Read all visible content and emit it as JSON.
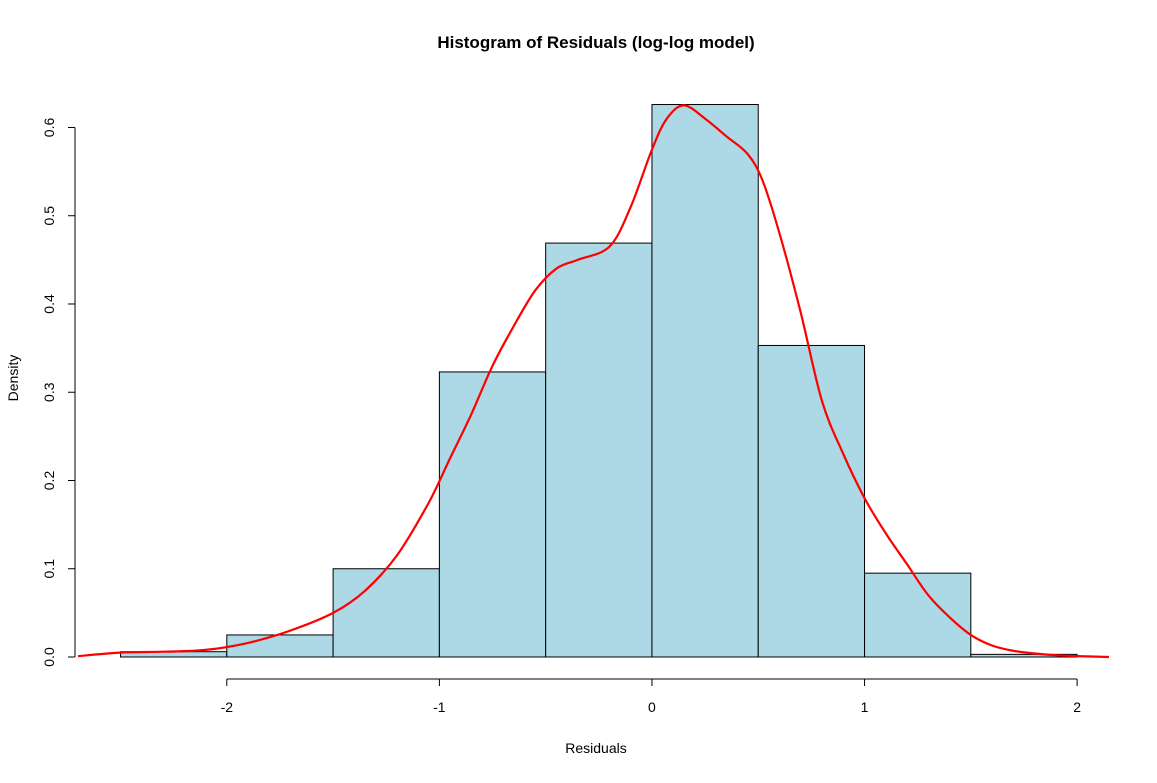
{
  "chart_data": {
    "type": "bar",
    "title": "Histogram of Residuals (log-log model)",
    "xlabel": "Residuals",
    "ylabel": "Density",
    "xlim": [
      -2.7,
      2.15
    ],
    "ylim": [
      0,
      0.63
    ],
    "x_ticks": [
      -2,
      -1,
      0,
      1,
      2
    ],
    "x_tick_labels": [
      "-2",
      "-1",
      "0",
      "1",
      "2"
    ],
    "y_ticks": [
      0.0,
      0.1,
      0.2,
      0.3,
      0.4,
      0.5,
      0.6
    ],
    "y_tick_labels": [
      "0.0",
      "0.1",
      "0.2",
      "0.3",
      "0.4",
      "0.5",
      "0.6"
    ],
    "grid": false,
    "bins": [
      {
        "x0": -2.5,
        "x1": -2.0,
        "density": 0.006
      },
      {
        "x0": -2.0,
        "x1": -1.5,
        "density": 0.025
      },
      {
        "x0": -1.5,
        "x1": -1.0,
        "density": 0.1
      },
      {
        "x0": -1.0,
        "x1": -0.5,
        "density": 0.323
      },
      {
        "x0": -0.5,
        "x1": 0.0,
        "density": 0.469
      },
      {
        "x0": 0.0,
        "x1": 0.5,
        "density": 0.626
      },
      {
        "x0": 0.5,
        "x1": 1.0,
        "density": 0.353
      },
      {
        "x0": 1.0,
        "x1": 1.5,
        "density": 0.095
      },
      {
        "x0": 1.5,
        "x1": 2.0,
        "density": 0.003
      }
    ],
    "bar_color": "#add8e6",
    "bar_border_color": "#000000",
    "density_curve": {
      "color": "#ff0000",
      "x": [
        -2.7,
        -2.5,
        -2.3,
        -2.1,
        -1.9,
        -1.7,
        -1.5,
        -1.35,
        -1.2,
        -1.05,
        -0.95,
        -0.85,
        -0.75,
        -0.65,
        -0.55,
        -0.45,
        -0.35,
        -0.2,
        -0.1,
        0.0,
        0.07,
        0.15,
        0.25,
        0.35,
        0.45,
        0.52,
        0.6,
        0.7,
        0.8,
        0.9,
        1.0,
        1.1,
        1.2,
        1.3,
        1.4,
        1.5,
        1.6,
        1.7,
        1.8,
        1.9,
        2.0,
        2.15
      ],
      "y": [
        0.001,
        0.005,
        0.006,
        0.008,
        0.016,
        0.03,
        0.05,
        0.075,
        0.115,
        0.175,
        0.225,
        0.275,
        0.33,
        0.375,
        0.415,
        0.44,
        0.45,
        0.465,
        0.51,
        0.575,
        0.61,
        0.625,
        0.61,
        0.59,
        0.57,
        0.54,
        0.48,
        0.39,
        0.29,
        0.23,
        0.18,
        0.14,
        0.105,
        0.07,
        0.045,
        0.025,
        0.013,
        0.007,
        0.004,
        0.002,
        0.001,
        0.0
      ]
    }
  }
}
